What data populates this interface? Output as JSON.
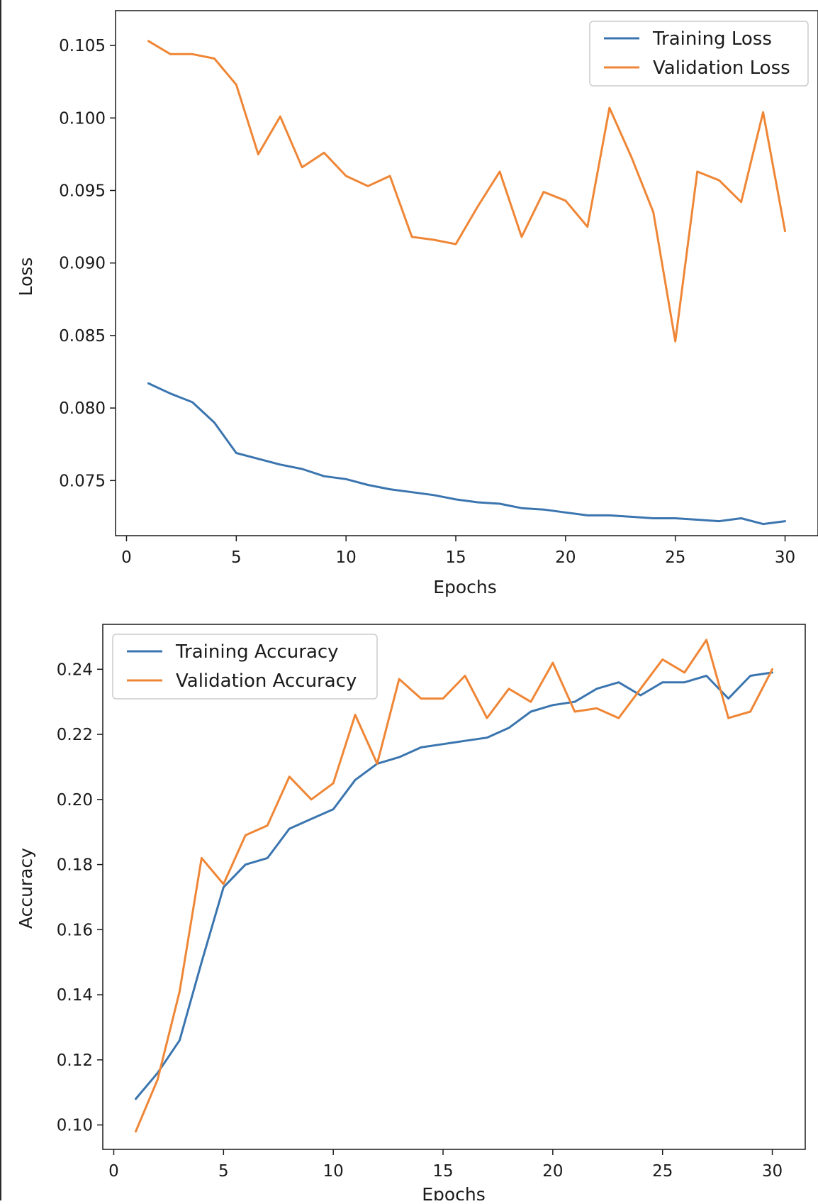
{
  "chart_data": [
    {
      "type": "line",
      "title": "",
      "xlabel": "Epochs",
      "ylabel": "Loss",
      "xlim": [
        -0.5,
        31.5
      ],
      "ylim": [
        0.0712,
        0.1074
      ],
      "xticks": [
        0,
        5,
        10,
        15,
        20,
        25,
        30
      ],
      "yticks": [
        0.075,
        0.08,
        0.085,
        0.09,
        0.095,
        0.1,
        0.105
      ],
      "ytick_labels": [
        "0.075",
        "0.080",
        "0.085",
        "0.090",
        "0.095",
        "0.100",
        "0.105"
      ],
      "grid": false,
      "legend_position": "top-right",
      "x": [
        1,
        2,
        3,
        4,
        5,
        6,
        7,
        8,
        9,
        10,
        11,
        12,
        13,
        14,
        15,
        16,
        17,
        18,
        19,
        20,
        21,
        22,
        23,
        24,
        25,
        26,
        27,
        28,
        29,
        30
      ],
      "series": [
        {
          "name": "Training Loss",
          "color": "#3b75af",
          "values": [
            0.0817,
            0.081,
            0.0804,
            0.079,
            0.0769,
            0.0765,
            0.0761,
            0.0758,
            0.0753,
            0.0751,
            0.0747,
            0.0744,
            0.0742,
            0.074,
            0.0737,
            0.0735,
            0.0734,
            0.0731,
            0.073,
            0.0728,
            0.0726,
            0.0726,
            0.0725,
            0.0724,
            0.0724,
            0.0723,
            0.0722,
            0.0724,
            0.072,
            0.0722
          ]
        },
        {
          "name": "Validation Loss",
          "color": "#ef8636",
          "values": [
            0.1053,
            0.1044,
            0.1044,
            0.1041,
            0.1023,
            0.0975,
            0.1001,
            0.0966,
            0.0976,
            0.096,
            0.0953,
            0.096,
            0.0918,
            0.0916,
            0.0913,
            0.0939,
            0.0963,
            0.0918,
            0.0949,
            0.0943,
            0.0925,
            0.1007,
            0.0973,
            0.0935,
            0.0846,
            0.0963,
            0.0957,
            0.0942,
            0.1004,
            0.0922
          ]
        }
      ]
    },
    {
      "type": "line",
      "title": "",
      "xlabel": "Epochs",
      "ylabel": "Accuracy",
      "xlim": [
        -0.5,
        31.5
      ],
      "ylim": [
        0.0925,
        0.2538
      ],
      "xticks": [
        0,
        5,
        10,
        15,
        20,
        25,
        30
      ],
      "yticks": [
        0.1,
        0.12,
        0.14,
        0.16,
        0.18,
        0.2,
        0.22,
        0.24
      ],
      "ytick_labels": [
        "0.10",
        "0.12",
        "0.14",
        "0.16",
        "0.18",
        "0.20",
        "0.22",
        "0.24"
      ],
      "grid": false,
      "legend_position": "top-left",
      "x": [
        1,
        2,
        3,
        4,
        5,
        6,
        7,
        8,
        9,
        10,
        11,
        12,
        13,
        14,
        15,
        16,
        17,
        18,
        19,
        20,
        21,
        22,
        23,
        24,
        25,
        26,
        27,
        28,
        29,
        30
      ],
      "series": [
        {
          "name": "Training Accuracy",
          "color": "#3b75af",
          "values": [
            0.108,
            0.116,
            0.126,
            0.15,
            0.173,
            0.18,
            0.182,
            0.191,
            0.194,
            0.197,
            0.206,
            0.211,
            0.213,
            0.216,
            0.217,
            0.218,
            0.219,
            0.222,
            0.227,
            0.229,
            0.23,
            0.234,
            0.236,
            0.232,
            0.236,
            0.236,
            0.238,
            0.231,
            0.238,
            0.239
          ]
        },
        {
          "name": "Validation Accuracy",
          "color": "#ef8636",
          "values": [
            0.098,
            0.114,
            0.141,
            0.182,
            0.174,
            0.189,
            0.192,
            0.207,
            0.2,
            0.205,
            0.226,
            0.211,
            0.237,
            0.231,
            0.231,
            0.238,
            0.225,
            0.234,
            0.23,
            0.242,
            0.227,
            0.228,
            0.225,
            0.234,
            0.243,
            0.239,
            0.249,
            0.225,
            0.227,
            0.24
          ]
        }
      ]
    }
  ]
}
